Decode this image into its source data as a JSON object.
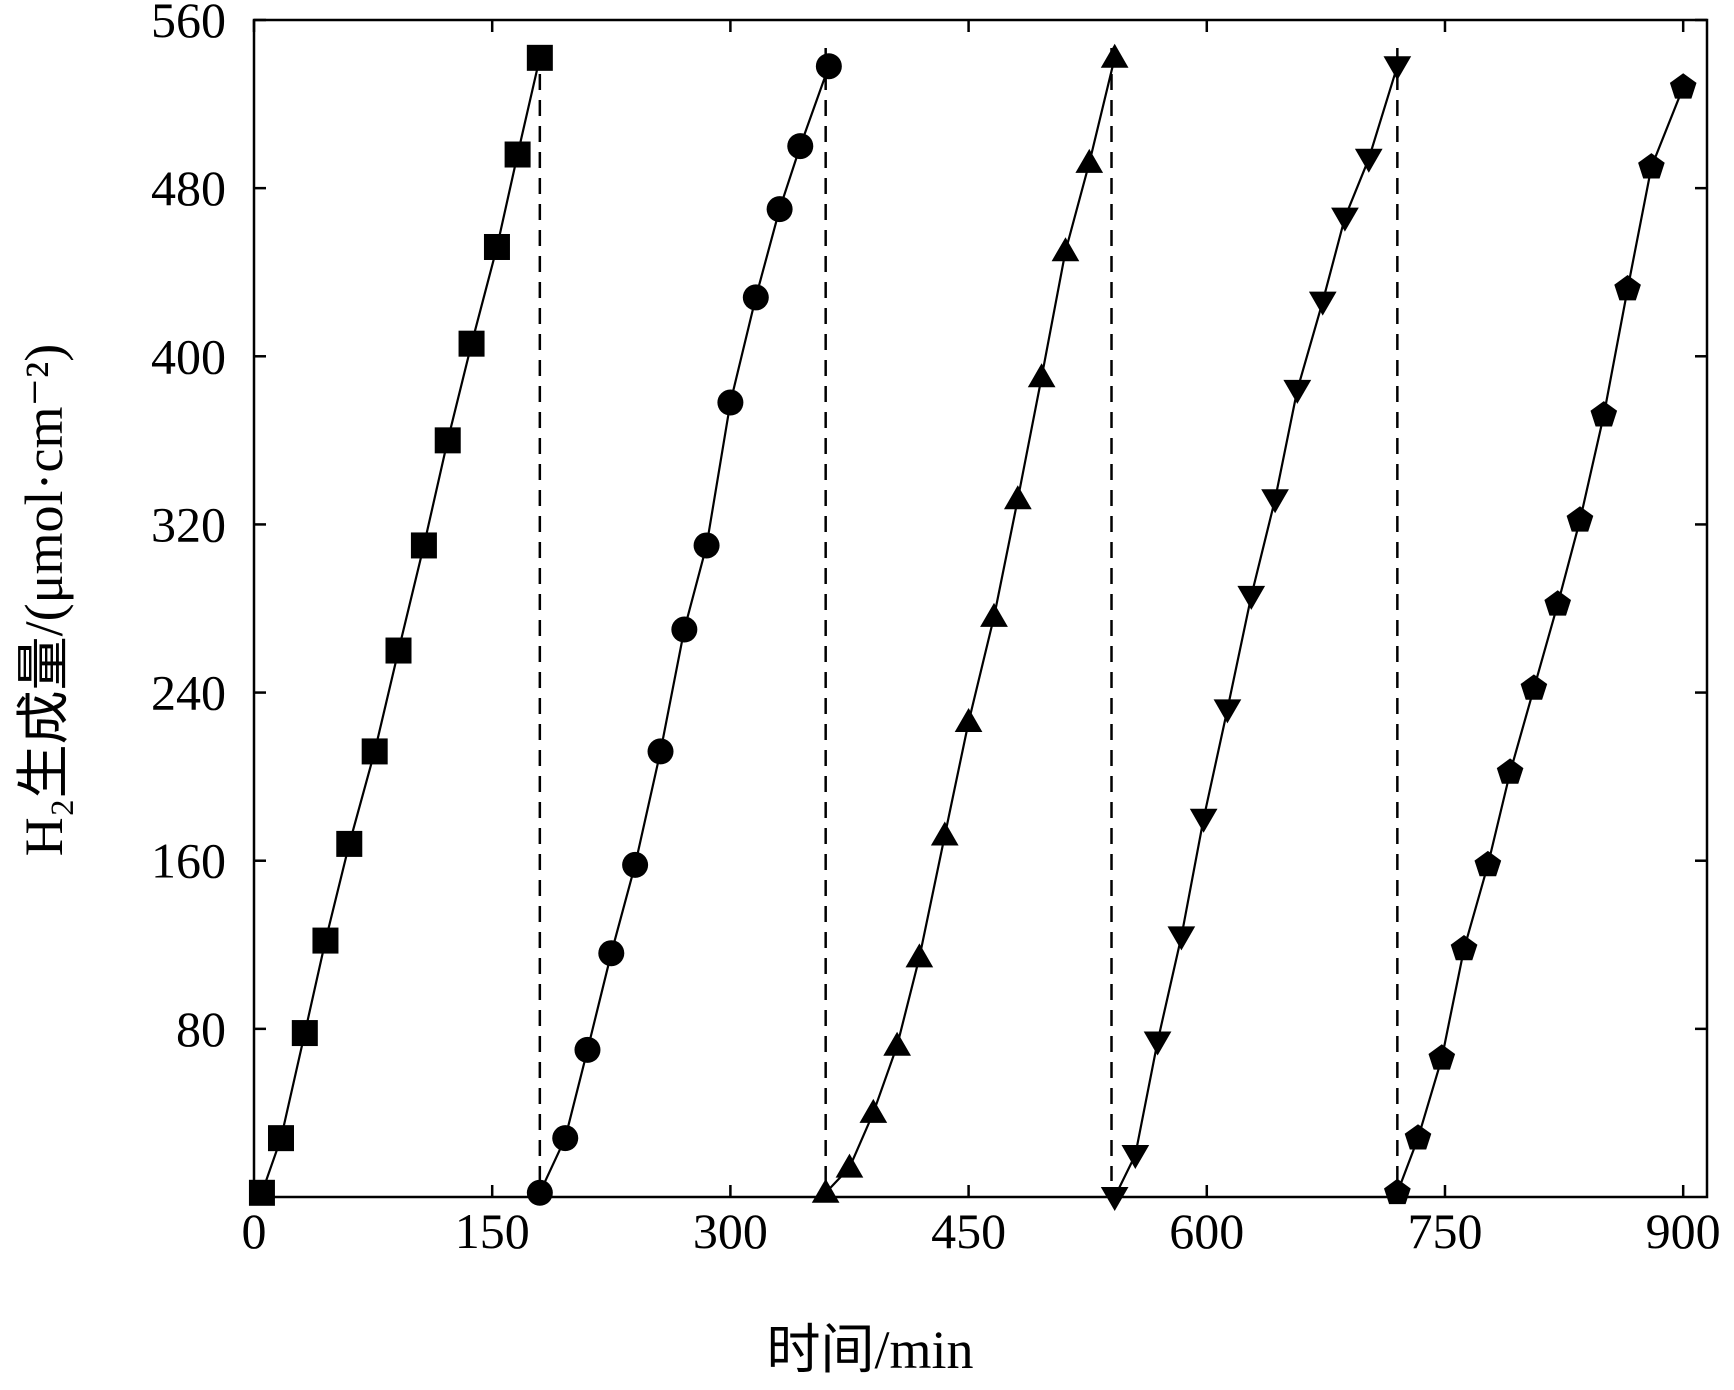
{
  "chart_data": {
    "type": "line",
    "title": "",
    "xlabel": "时间/min",
    "ylabel": "H₂生成量/(μmol·cm⁻²)",
    "xlim": [
      0,
      915
    ],
    "ylim": [
      0,
      560
    ],
    "x_ticks": [
      0,
      150,
      300,
      450,
      600,
      750,
      900
    ],
    "y_ticks": [
      80,
      160,
      240,
      320,
      400,
      480,
      560
    ],
    "x_tick_labels": [
      "0",
      "150",
      "300",
      "450",
      "600",
      "750",
      "900"
    ],
    "y_tick_labels": [
      "80",
      "160",
      "240",
      "320",
      "400",
      "480",
      "560"
    ],
    "grid": false,
    "legend": "none",
    "color": "#000000",
    "cycle_boundaries": [
      180,
      360,
      540,
      720
    ],
    "series": [
      {
        "marker": "square",
        "x": [
          5,
          17,
          32,
          45,
          60,
          76,
          91,
          107,
          122,
          137,
          153,
          166,
          180
        ],
        "y": [
          2,
          28,
          78,
          122,
          168,
          212,
          260,
          310,
          360,
          406,
          452,
          496,
          542
        ]
      },
      {
        "marker": "circle",
        "x": [
          180,
          196,
          210,
          225,
          240,
          256,
          271,
          285,
          300,
          316,
          331,
          344,
          362
        ],
        "y": [
          2,
          28,
          70,
          116,
          158,
          212,
          270,
          310,
          378,
          428,
          470,
          500,
          538
        ]
      },
      {
        "marker": "triangle-up",
        "x": [
          360,
          375,
          390,
          405,
          419,
          435,
          450,
          466,
          481,
          496,
          511,
          526,
          542
        ],
        "y": [
          2,
          14,
          40,
          72,
          114,
          172,
          226,
          276,
          332,
          390,
          450,
          492,
          542
        ]
      },
      {
        "marker": "triangle-down",
        "x": [
          542,
          555,
          569,
          584,
          598,
          613,
          628,
          643,
          657,
          673,
          687,
          702,
          720
        ],
        "y": [
          0,
          20,
          74,
          124,
          180,
          232,
          286,
          332,
          384,
          426,
          466,
          494,
          538
        ]
      },
      {
        "marker": "pentagon",
        "x": [
          720,
          733,
          748,
          762,
          777,
          791,
          806,
          821,
          835,
          850,
          865,
          880,
          900
        ],
        "y": [
          2,
          28,
          66,
          118,
          158,
          202,
          242,
          282,
          322,
          372,
          432,
          490,
          528
        ]
      }
    ]
  }
}
